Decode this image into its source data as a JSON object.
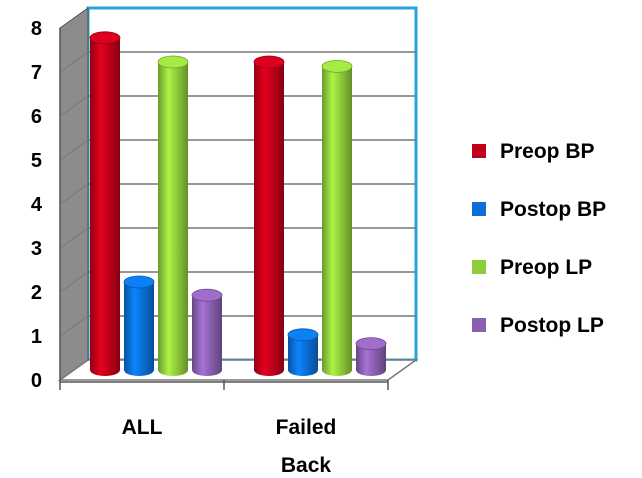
{
  "chart_data": {
    "type": "bar",
    "title": "",
    "xlabel": "",
    "ylabel": "",
    "ylim": [
      0,
      8
    ],
    "y_ticks": [
      "0",
      "1",
      "2",
      "3",
      "4",
      "5",
      "6",
      "7",
      "8"
    ],
    "categories": [
      {
        "lines": [
          "ALL"
        ]
      },
      {
        "lines": [
          "Failed",
          "Back"
        ]
      }
    ],
    "series": [
      {
        "name": "Preop BP",
        "color": "#c0001a",
        "values": [
          7.55,
          7.0
        ]
      },
      {
        "name": "Postop BP",
        "color": "#0a6fd6",
        "values": [
          2.0,
          0.8
        ]
      },
      {
        "name": "Preop LP",
        "color": "#8fcc3a",
        "values": [
          7.0,
          6.9
        ]
      },
      {
        "name": "Postop LP",
        "color": "#8a5fb0",
        "values": [
          1.7,
          0.6
        ]
      }
    ],
    "grid": true,
    "legend": "right",
    "style": "3d-cylinder"
  }
}
